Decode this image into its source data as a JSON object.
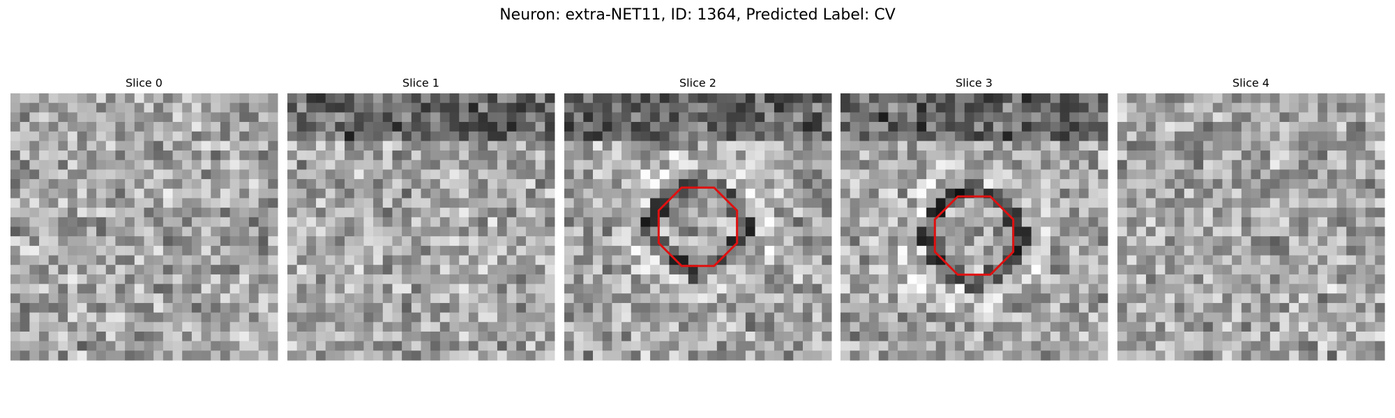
{
  "header": {
    "title": "Neuron: extra-NET11, ID: 1364, Predicted Label: CV"
  },
  "panels": [
    {
      "title": "Slice 0"
    },
    {
      "title": "Slice 1"
    },
    {
      "title": "Slice 2"
    },
    {
      "title": "Slice 3"
    },
    {
      "title": "Slice 4"
    }
  ]
}
